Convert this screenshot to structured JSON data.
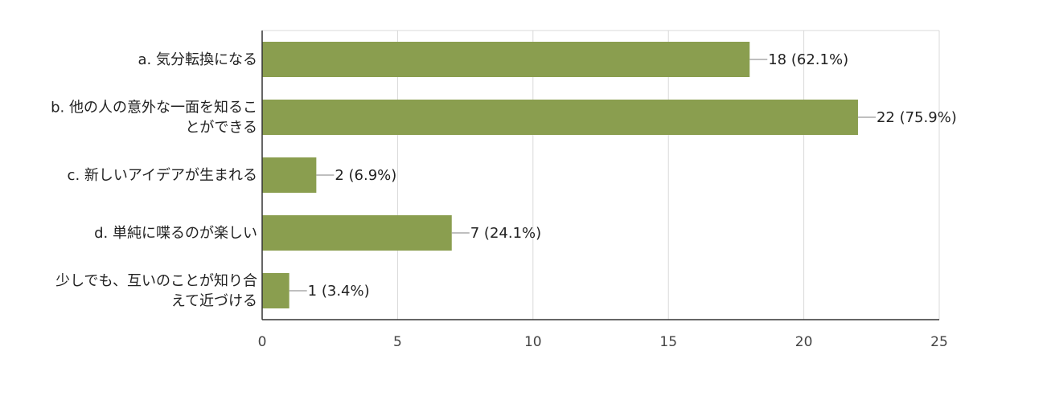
{
  "chart_data": {
    "type": "bar",
    "orientation": "horizontal",
    "categories": [
      [
        "a. 気分転換になる"
      ],
      [
        "b. 他の人の意外な一面を知るこ",
        "とができる"
      ],
      [
        "c. 新しいアイデアが生まれる"
      ],
      [
        "d. 単純に喋るのが楽しい"
      ],
      [
        "少しでも、互いのことが知り合",
        "えて近づける"
      ]
    ],
    "values": [
      18,
      22,
      2,
      7,
      1
    ],
    "value_labels": [
      "18 (62.1%)",
      "22 (75.9%)",
      "2 (6.9%)",
      "7 (24.1%)",
      "1 (3.4%)"
    ],
    "xlim": [
      0,
      25
    ],
    "xticks": [
      0,
      5,
      10,
      15,
      20,
      25
    ],
    "xtick_labels": [
      "0",
      "5",
      "10",
      "15",
      "20",
      "25"
    ],
    "grid": true,
    "title": "",
    "xlabel": "",
    "ylabel": "",
    "colors": {
      "bar": "#8a9e4f",
      "grid": "#d9d9d9",
      "axis": "#333333",
      "leader": "#999999"
    }
  }
}
